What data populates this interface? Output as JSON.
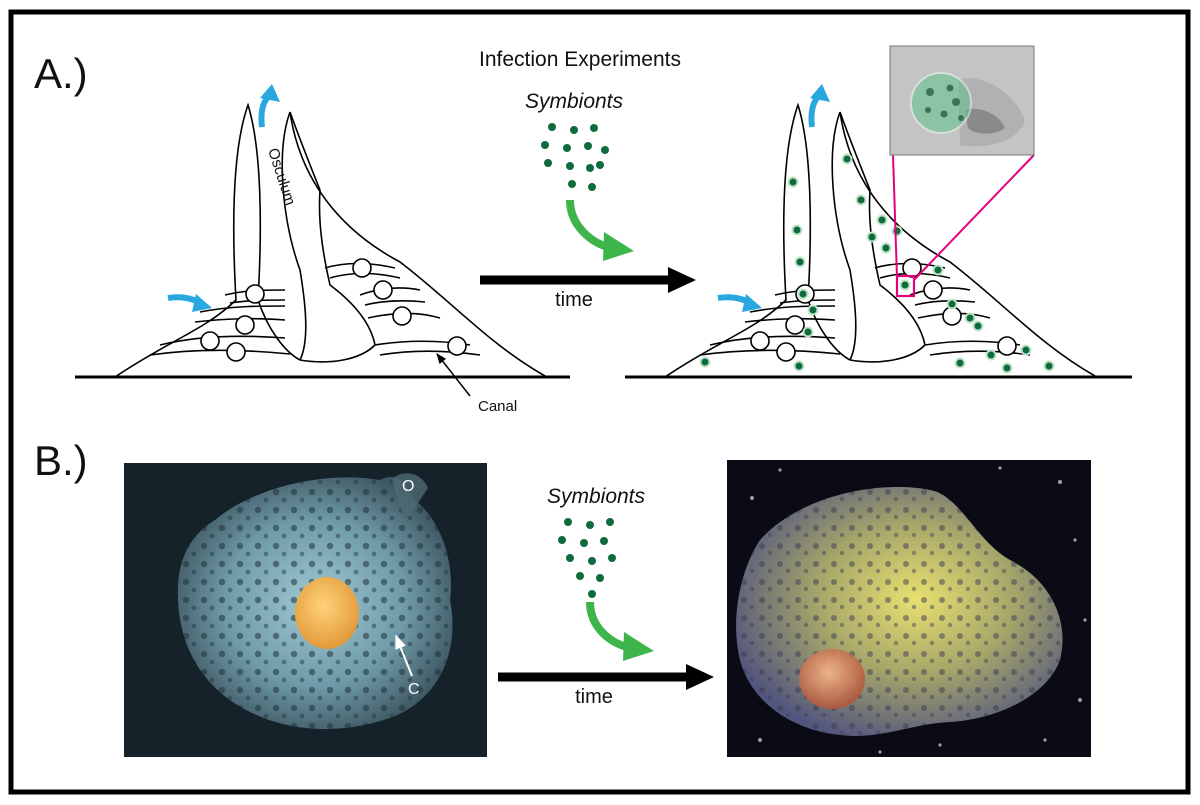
{
  "panel_a": {
    "label": "A.)",
    "title": "Infection Experiments",
    "symbionts_label": "Symbionts",
    "time_label": "time",
    "osculum_label": "Osculum",
    "canal_label": "Canal"
  },
  "panel_b": {
    "label": "B.)",
    "symbionts_label": "Symbionts",
    "time_label": "time",
    "osculum_marker": "O",
    "canal_marker": "C"
  },
  "colors": {
    "symbiont_green": "#0e6b3c",
    "arrow_green": "#3db54a",
    "flow_blue": "#29a8e0",
    "highlight_magenta": "#e6007e",
    "frame_black": "#000000"
  }
}
